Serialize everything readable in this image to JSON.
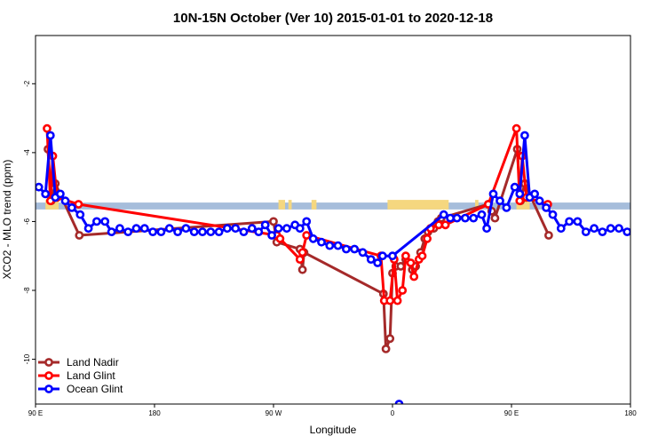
{
  "chart_data": {
    "type": "line",
    "title": "10N-15N October (Ver 10)   2015-01-01 to 2020-12-18",
    "xlabel": "Longitude",
    "ylabel": "XCO2 - MLO trend (ppm)",
    "xlim": [
      90,
      450
    ],
    "ylim": [
      -11.3,
      -0.6
    ],
    "x_ticks": [
      {
        "value": 90,
        "label": "90 E"
      },
      {
        "value": 162,
        "label": "180"
      },
      {
        "value": 234,
        "label": "90 W"
      },
      {
        "value": 306,
        "label": "0"
      },
      {
        "value": 378,
        "label": "90 E"
      },
      {
        "value": 450,
        "label": "180"
      }
    ],
    "y_ticks": [
      {
        "value": -2,
        "label": "-2"
      },
      {
        "value": -4,
        "label": "-4"
      },
      {
        "value": -6,
        "label": "-6"
      },
      {
        "value": -8,
        "label": "-8"
      },
      {
        "value": -10,
        "label": "-10"
      }
    ],
    "map_strip": {
      "y_top": -5.45,
      "y_bottom": -5.65,
      "ocean_color": "#a6bddb",
      "land_color": "#f5d77f"
    },
    "legend_position": "bottom-left",
    "series": [
      {
        "name": "Land Nadir",
        "color": "#a52a2a",
        "points": [
          [
            97.5,
            -3.9
          ],
          [
            99.5,
            -5.4
          ],
          [
            102,
            -4.9
          ],
          [
            116.5,
            -6.4
          ],
          [
            234,
            -6.0
          ],
          [
            236,
            -6.6
          ],
          [
            250,
            -6.8
          ],
          [
            251.5,
            -7.4
          ],
          [
            252.5,
            -6.9
          ],
          [
            300.5,
            -8.1
          ],
          [
            302,
            -9.7
          ],
          [
            304.5,
            -9.4
          ],
          [
            306,
            -7.5
          ],
          [
            308,
            -7.3
          ],
          [
            311,
            -7.3
          ],
          [
            314,
            -7.1
          ],
          [
            318,
            -7.4
          ],
          [
            320,
            -7.3
          ],
          [
            323,
            -6.9
          ],
          [
            325.5,
            -6.5
          ],
          [
            327.5,
            -6.3
          ],
          [
            331,
            -6.2
          ],
          [
            333.5,
            -6.0
          ],
          [
            335.5,
            -5.9
          ],
          [
            364,
            -5.5
          ],
          [
            366,
            -5.7
          ],
          [
            368,
            -5.9
          ],
          [
            381.5,
            -3.9
          ],
          [
            383.5,
            -5.4
          ],
          [
            386,
            -4.9
          ],
          [
            400.5,
            -6.4
          ]
        ]
      },
      {
        "name": "Land Glint",
        "color": "#ff0000",
        "points": [
          [
            97,
            -3.3
          ],
          [
            99,
            -5.4
          ],
          [
            100.5,
            -4.1
          ],
          [
            103,
            -5.3
          ],
          [
            116,
            -5.5
          ],
          [
            236,
            -6.4
          ],
          [
            238,
            -6.5
          ],
          [
            250,
            -7.1
          ],
          [
            251.5,
            -6.9
          ],
          [
            254,
            -6.4
          ],
          [
            299,
            -7.0
          ],
          [
            301,
            -8.3
          ],
          [
            304.5,
            -8.3
          ],
          [
            307,
            -7.1
          ],
          [
            309,
            -8.3
          ],
          [
            312,
            -8.0
          ],
          [
            314,
            -7.0
          ],
          [
            317,
            -7.2
          ],
          [
            319,
            -7.6
          ],
          [
            322,
            -7.1
          ],
          [
            324,
            -7.0
          ],
          [
            327,
            -6.5
          ],
          [
            329,
            -6.2
          ],
          [
            334,
            -6.1
          ],
          [
            338,
            -6.1
          ],
          [
            364,
            -5.5
          ],
          [
            381,
            -3.3
          ],
          [
            383,
            -5.4
          ],
          [
            384.5,
            -4.1
          ],
          [
            387,
            -5.3
          ],
          [
            400,
            -5.5
          ]
        ]
      },
      {
        "name": "Ocean Glint",
        "color": "#0000ff",
        "points": [
          [
            92,
            -5.0
          ],
          [
            96,
            -5.2
          ],
          [
            99,
            -3.5
          ],
          [
            102,
            -5.3
          ],
          [
            105,
            -5.2
          ],
          [
            108,
            -5.4
          ],
          [
            112,
            -5.6
          ],
          [
            117,
            -5.8
          ],
          [
            122,
            -6.2
          ],
          [
            127,
            -6.0
          ],
          [
            132,
            -6.0
          ],
          [
            136,
            -6.3
          ],
          [
            141,
            -6.2
          ],
          [
            146,
            -6.3
          ],
          [
            151,
            -6.2
          ],
          [
            156,
            -6.2
          ],
          [
            161,
            -6.3
          ],
          [
            166,
            -6.3
          ],
          [
            171,
            -6.2
          ],
          [
            176,
            -6.3
          ],
          [
            181,
            -6.2
          ],
          [
            186,
            -6.3
          ],
          [
            191,
            -6.3
          ],
          [
            196,
            -6.3
          ],
          [
            201,
            -6.3
          ],
          [
            206,
            -6.2
          ],
          [
            211,
            -6.2
          ],
          [
            216,
            -6.3
          ],
          [
            221,
            -6.2
          ],
          [
            225,
            -6.3
          ],
          [
            229,
            -6.1
          ],
          [
            233,
            -6.4
          ],
          [
            237,
            -6.2
          ],
          [
            242,
            -6.2
          ],
          [
            247,
            -6.1
          ],
          [
            250,
            -6.2
          ],
          [
            254,
            -6.0
          ],
          [
            258,
            -6.5
          ],
          [
            263,
            -6.6
          ],
          [
            268,
            -6.7
          ],
          [
            273,
            -6.7
          ],
          [
            278,
            -6.8
          ],
          [
            283,
            -6.8
          ],
          [
            288,
            -6.9
          ],
          [
            293,
            -7.1
          ],
          [
            297,
            -7.2
          ],
          [
            300,
            -7.0
          ],
          [
            306,
            -7.0
          ],
          [
            337,
            -5.8
          ],
          [
            341,
            -5.9
          ],
          [
            345,
            -5.9
          ],
          [
            350,
            -5.9
          ],
          [
            355,
            -5.9
          ],
          [
            360,
            -5.8
          ],
          [
            363,
            -6.2
          ],
          [
            367,
            -5.2
          ],
          [
            371,
            -5.4
          ],
          [
            375,
            -5.6
          ],
          [
            380,
            -5.0
          ],
          [
            383,
            -5.2
          ],
          [
            386,
            -3.5
          ],
          [
            389,
            -5.3
          ],
          [
            392,
            -5.2
          ],
          [
            395,
            -5.4
          ],
          [
            399,
            -5.6
          ],
          [
            403,
            -5.8
          ],
          [
            408,
            -6.2
          ],
          [
            413,
            -6.0
          ],
          [
            418,
            -6.0
          ],
          [
            423,
            -6.3
          ],
          [
            428,
            -6.2
          ],
          [
            433,
            -6.3
          ],
          [
            438,
            -6.2
          ],
          [
            443,
            -6.2
          ],
          [
            448,
            -6.3
          ]
        ]
      }
    ],
    "extra_marker": {
      "series": "Ocean Glint",
      "x": 310,
      "y": -11.3
    }
  }
}
